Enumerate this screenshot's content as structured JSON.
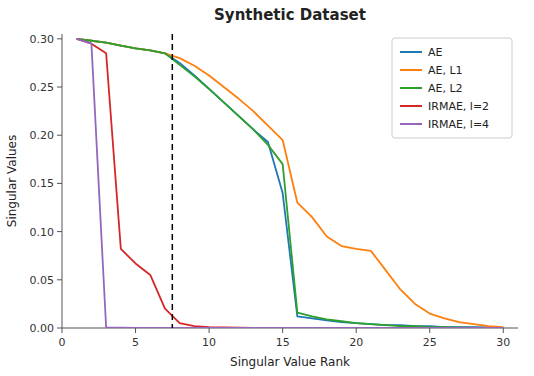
{
  "chart_data": {
    "type": "line",
    "title": "Synthetic Dataset",
    "x_label": "Singular Value Rank",
    "y_label": "Singular Values",
    "x": [
      1,
      2,
      3,
      4,
      5,
      6,
      7,
      8,
      9,
      10,
      11,
      12,
      13,
      14,
      15,
      16,
      17,
      18,
      19,
      20,
      21,
      22,
      23,
      24,
      25,
      26,
      27,
      28,
      29,
      30
    ],
    "series": [
      {
        "name": "AE",
        "color": "#1f77b4",
        "values": [
          0.3,
          0.298,
          0.296,
          0.293,
          0.29,
          0.288,
          0.285,
          0.275,
          0.262,
          0.248,
          0.234,
          0.22,
          0.206,
          0.193,
          0.14,
          0.012,
          0.01,
          0.008,
          0.006,
          0.005,
          0.004,
          0.003,
          0.003,
          0.002,
          0.002,
          0.001,
          0.001,
          0.001,
          0.0005,
          0.0
        ]
      },
      {
        "name": "AE, L1",
        "color": "#ff7f0e",
        "values": [
          0.3,
          0.298,
          0.296,
          0.293,
          0.29,
          0.288,
          0.285,
          0.28,
          0.272,
          0.262,
          0.25,
          0.238,
          0.225,
          0.21,
          0.195,
          0.13,
          0.115,
          0.095,
          0.085,
          0.082,
          0.08,
          0.06,
          0.04,
          0.025,
          0.015,
          0.01,
          0.006,
          0.004,
          0.002,
          0.001
        ]
      },
      {
        "name": "AE, L2",
        "color": "#2ca02c",
        "values": [
          0.3,
          0.298,
          0.296,
          0.293,
          0.29,
          0.288,
          0.285,
          0.273,
          0.261,
          0.248,
          0.234,
          0.22,
          0.206,
          0.19,
          0.17,
          0.016,
          0.012,
          0.009,
          0.007,
          0.005,
          0.004,
          0.003,
          0.002,
          0.002,
          0.001,
          0.001,
          0.0005,
          0.0003,
          0.0002,
          0.0
        ]
      },
      {
        "name": "IRMAE, l=2",
        "color": "#d62728",
        "values": [
          0.3,
          0.295,
          0.285,
          0.082,
          0.067,
          0.055,
          0.02,
          0.005,
          0.002,
          0.001,
          0.0005,
          0.0003,
          0.0002,
          0.0001,
          0.0,
          0.0,
          0.0,
          0.0,
          0.0,
          0.0,
          0.0,
          0.0,
          0.0,
          0.0,
          0.0,
          0.0,
          0.0,
          0.0,
          0.0,
          0.0
        ]
      },
      {
        "name": "IRMAE, l=4",
        "color": "#9467bd",
        "values": [
          0.3,
          0.295,
          0.0005,
          0.0003,
          0.0002,
          0.0001,
          0.0,
          0.0,
          0.0,
          0.0,
          0.0,
          0.0,
          0.0,
          0.0,
          0.0,
          0.0,
          0.0,
          0.0,
          0.0,
          0.0,
          0.0,
          0.0,
          0.0,
          0.0,
          0.0,
          0.0,
          0.0,
          0.0,
          0.0,
          0.0
        ]
      }
    ],
    "vline": {
      "x": 7.5,
      "color": "black",
      "line_style": "dashed"
    },
    "xlim": [
      0,
      31
    ],
    "ylim": [
      0,
      0.305
    ],
    "xticks": [
      0,
      5,
      10,
      15,
      20,
      25,
      30
    ],
    "yticks": [
      {
        "value": 0,
        "label": "0.00"
      },
      0.05,
      {
        "value": 0.1,
        "label": "0.10"
      },
      0.15,
      {
        "value": 0.2,
        "label": "0.20"
      },
      0.25,
      {
        "value": 0.3,
        "label": "0.30"
      }
    ],
    "legend": "upper right"
  }
}
